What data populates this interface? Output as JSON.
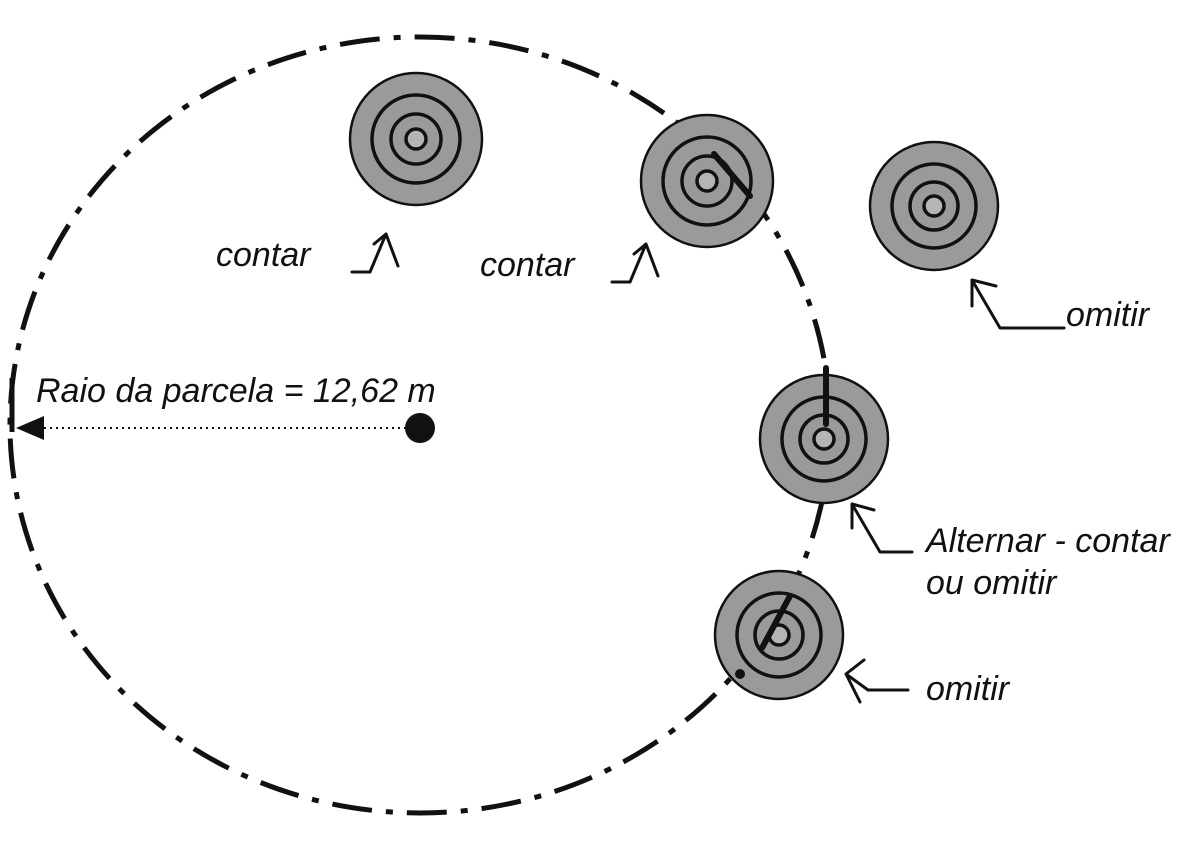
{
  "labels": {
    "radius": "Raio da parcela = 12,62 m",
    "tree1": "contar",
    "tree2": "contar",
    "tree3": "omitir",
    "tree4_line1": "Alternar - contar",
    "tree4_line2": "ou omitir",
    "tree5": "omitir"
  },
  "colors": {
    "stump_fill": "#9a9a9a",
    "line": "#111111"
  }
}
